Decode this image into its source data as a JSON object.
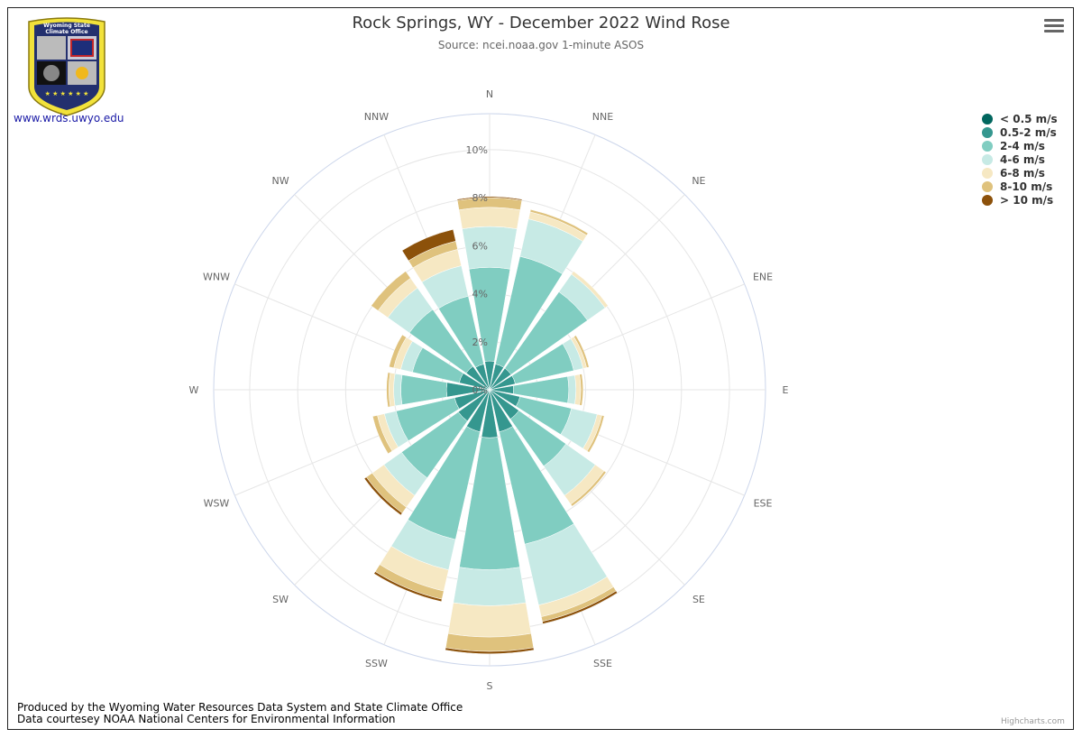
{
  "title": "Rock Springs, WY - December 2022 Wind Rose",
  "subtitle": "Source: ncei.noaa.gov 1-minute ASOS",
  "logo": {
    "top_text": "Wyoming State Climate Office",
    "link_text": "www.wrds.uwyo.edu"
  },
  "footer": {
    "line1": "Produced by the Wyoming Water Resources Data System and State Climate Office",
    "line2": "Data courtesey NOAA National Centers for Environmental Information"
  },
  "credits": "Highcharts.com",
  "menu_icon": "hamburger-menu-icon",
  "chart_data": {
    "type": "wind-rose",
    "stacking": "stacked",
    "title": "Rock Springs, WY - December 2022 Wind Rose",
    "subtitle": "Source: ncei.noaa.gov 1-minute ASOS",
    "directions": [
      "N",
      "NNE",
      "NE",
      "ENE",
      "E",
      "ESE",
      "SE",
      "SSE",
      "S",
      "SSW",
      "SW",
      "WSW",
      "W",
      "WNW",
      "NW",
      "NNW"
    ],
    "y_ticks": [
      "0%",
      "2%",
      "4%",
      "6%",
      "8%",
      "10%"
    ],
    "ylim": [
      0,
      11.5
    ],
    "legend_position": "top-right",
    "series": [
      {
        "name": "< 0.5 m/s",
        "color": "#01665e",
        "values": [
          0.0,
          0.0,
          0.0,
          0.0,
          0.0,
          0.0,
          0.0,
          0.0,
          0.0,
          0.0,
          0.0,
          0.0,
          0.0,
          0.0,
          0.0,
          0.0
        ]
      },
      {
        "name": "0.5-2 m/s",
        "color": "#35978f",
        "values": [
          1.2,
          1.1,
          1.1,
          1.1,
          1.0,
          1.3,
          1.5,
          1.8,
          2.0,
          1.8,
          1.6,
          1.5,
          1.8,
          1.3,
          1.2,
          1.1
        ]
      },
      {
        "name": "2-4 m/s",
        "color": "#80cdc1",
        "values": [
          3.9,
          4.6,
          3.9,
          2.5,
          2.3,
          2.2,
          2.4,
          4.8,
          5.5,
          4.6,
          2.9,
          2.5,
          1.9,
          2.0,
          2.9,
          2.9
        ]
      },
      {
        "name": "4-6 m/s",
        "color": "#c7eae5",
        "values": [
          1.7,
          1.6,
          0.9,
          0.4,
          0.3,
          1.1,
          1.5,
          2.6,
          1.5,
          1.3,
          0.9,
          0.5,
          0.3,
          0.5,
          1.1,
          1.3
        ]
      },
      {
        "name": "6-8 m/s",
        "color": "#f6e8c3",
        "values": [
          0.8,
          0.3,
          0.15,
          0.15,
          0.2,
          0.2,
          0.45,
          0.5,
          1.3,
          0.9,
          0.6,
          0.3,
          0.2,
          0.3,
          0.5,
          0.7
        ]
      },
      {
        "name": "8-10 m/s",
        "color": "#dfc27d",
        "values": [
          0.4,
          0.1,
          0.0,
          0.1,
          0.1,
          0.1,
          0.1,
          0.2,
          0.6,
          0.35,
          0.3,
          0.2,
          0.1,
          0.2,
          0.35,
          0.35
        ]
      },
      {
        "name": "> 10 m/s",
        "color": "#8c510a",
        "values": [
          0.05,
          0.0,
          0.0,
          0.0,
          0.0,
          0.0,
          0.0,
          0.1,
          0.1,
          0.1,
          0.1,
          0.0,
          0.0,
          0.0,
          0.0,
          0.5
        ]
      }
    ]
  }
}
